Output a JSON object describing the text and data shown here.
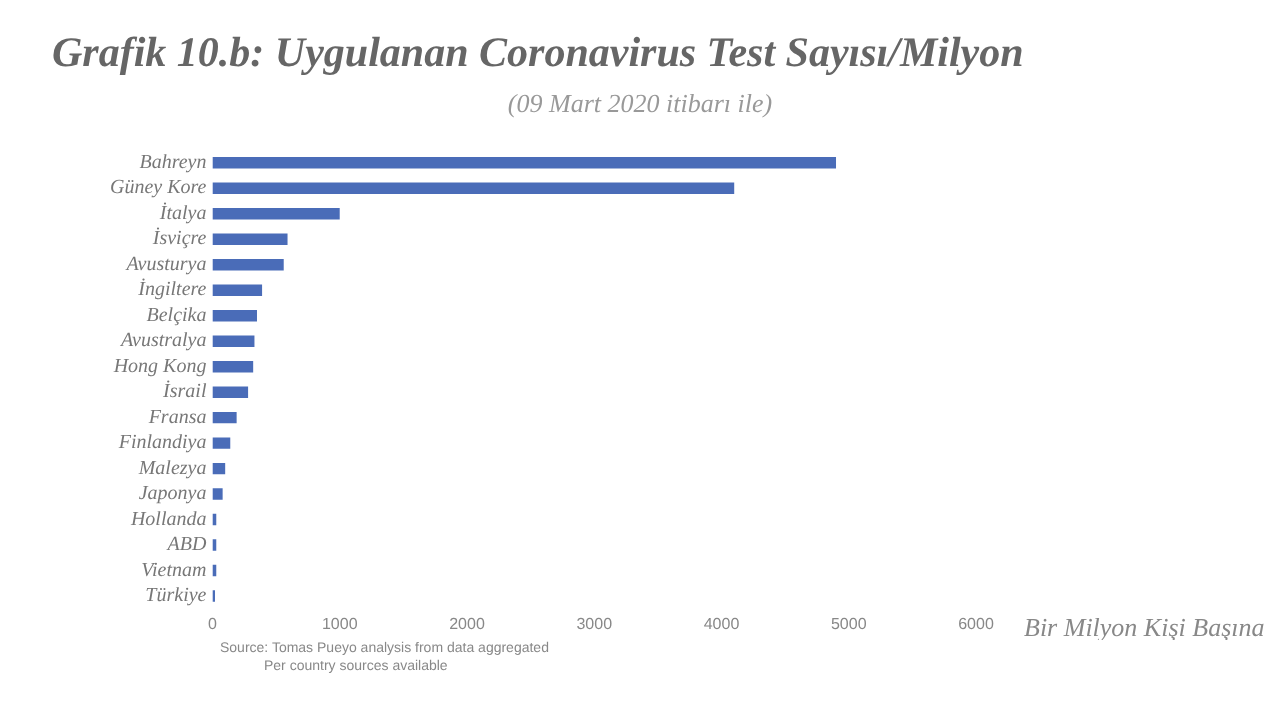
{
  "chart_data": {
    "type": "bar",
    "orientation": "horizontal",
    "title": "Grafik 10.b: Uygulanan Coronavirus Test Sayısı/Milyon",
    "subtitle": "(09 Mart 2020 itibarı ile)",
    "xlabel": "Bir Milyon Kişi Başına",
    "categories": [
      "Bahreyn",
      "Güney Kore",
      "İtalya",
      "İsviçre",
      "Avusturya",
      "İngiltere",
      "Belçika",
      "Avustralya",
      "Hong Kong",
      "İsrail",
      "Fransa",
      "Finlandiya",
      "Malezya",
      "Japonya",
      "Hollanda",
      "ABD",
      "Vietnam",
      "Türkiye"
    ],
    "values": [
      4900,
      4100,
      1000,
      590,
      560,
      390,
      350,
      330,
      320,
      280,
      190,
      140,
      100,
      80,
      30,
      30,
      30,
      20
    ],
    "color": "#4a6cb8",
    "xlim": [
      0,
      6000
    ],
    "xticks": [
      0,
      1000,
      2000,
      3000,
      4000,
      5000,
      6000
    ],
    "grid": false,
    "legend": false,
    "annotations": [
      "Source: Tomas Pueyo analysis from data aggregated",
      "Per country sources available"
    ]
  }
}
